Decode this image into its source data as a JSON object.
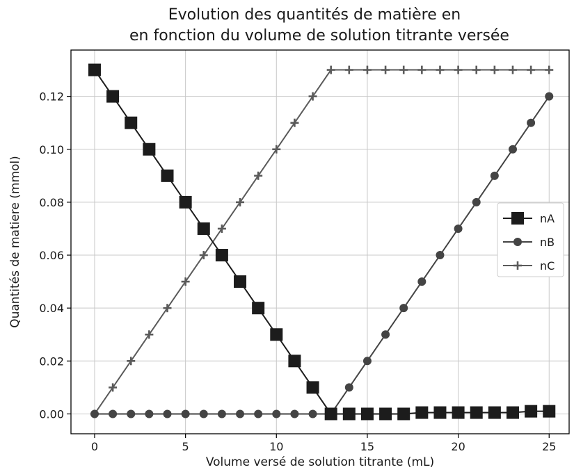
{
  "chart_data": {
    "type": "line",
    "title_line1": "Evolution des quantités de matière en",
    "title_line2": "en fonction du volume de solution titrante versée",
    "xlabel": "Volume versé de solution titrante (mL)",
    "ylabel": "Quantités de matiere (mmol)",
    "xlim": [
      -1.3,
      26.1
    ],
    "ylim": [
      -0.0075,
      0.1375
    ],
    "xticks": [
      0,
      5,
      10,
      15,
      20,
      25
    ],
    "xtick_labels": [
      "0",
      "5",
      "10",
      "15",
      "20",
      "25"
    ],
    "yticks": [
      0.0,
      0.02,
      0.04,
      0.06,
      0.08,
      0.1,
      0.12
    ],
    "ytick_labels": [
      "0.00",
      "0.02",
      "0.04",
      "0.06",
      "0.08",
      "0.10",
      "0.12"
    ],
    "grid": true,
    "legend_position": "center-right",
    "x": [
      0,
      1,
      2,
      3,
      4,
      5,
      6,
      7,
      8,
      9,
      10,
      11,
      12,
      13,
      14,
      15,
      16,
      17,
      18,
      19,
      20,
      21,
      22,
      23,
      24,
      25
    ],
    "series": [
      {
        "name": "nA",
        "marker": "square",
        "color": "#1c1c1c",
        "values": [
          0.13,
          0.12,
          0.11,
          0.1,
          0.09,
          0.08,
          0.07,
          0.06,
          0.05,
          0.04,
          0.03,
          0.02,
          0.01,
          0.0,
          0.0,
          0.0,
          0.0,
          0.0,
          0.0005,
          0.0005,
          0.0005,
          0.0005,
          0.0005,
          0.0005,
          0.001,
          0.001
        ]
      },
      {
        "name": "nB",
        "marker": "circle",
        "color": "#444444",
        "values": [
          0.0,
          0.0,
          0.0,
          0.0,
          0.0,
          0.0,
          0.0,
          0.0,
          0.0,
          0.0,
          0.0,
          0.0,
          0.0,
          0.0,
          0.01,
          0.02,
          0.03,
          0.04,
          0.05,
          0.06,
          0.07,
          0.08,
          0.09,
          0.1,
          0.11,
          0.12
        ]
      },
      {
        "name": "nC",
        "marker": "plus",
        "color": "#5a5a5a",
        "values": [
          0.0,
          0.01,
          0.02,
          0.03,
          0.04,
          0.05,
          0.06,
          0.07,
          0.08,
          0.09,
          0.1,
          0.11,
          0.12,
          0.13,
          0.13,
          0.13,
          0.13,
          0.13,
          0.13,
          0.13,
          0.13,
          0.13,
          0.13,
          0.13,
          0.13,
          0.13
        ]
      }
    ]
  }
}
